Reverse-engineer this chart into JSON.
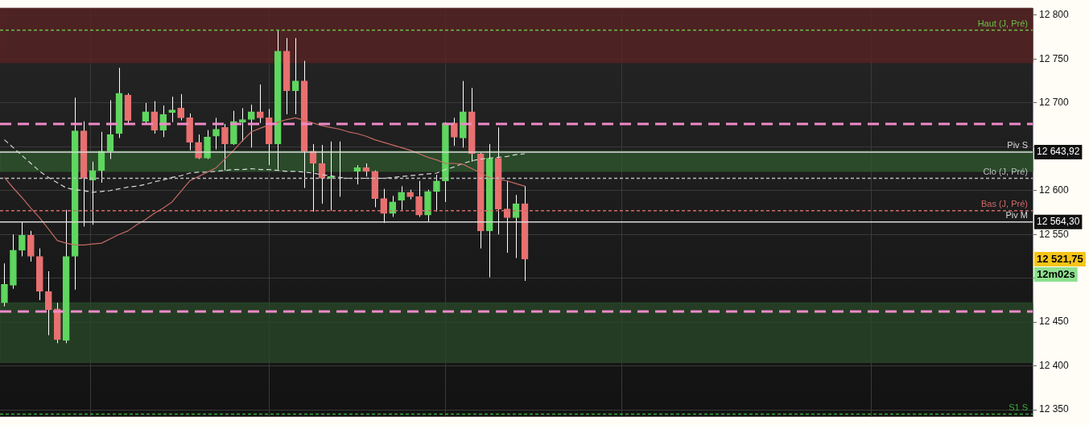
{
  "chart_data": {
    "type": "candlestick",
    "categories": [
      null,
      null,
      null,
      null,
      null,
      null,
      null,
      null,
      null,
      null,
      null,
      null,
      null,
      null,
      null,
      null,
      null,
      null,
      null,
      null,
      null,
      null,
      null,
      null,
      null,
      null,
      null,
      null,
      null,
      null,
      null,
      null,
      null,
      null,
      null,
      null,
      null,
      null,
      null,
      null,
      null,
      null,
      null,
      null,
      null,
      null,
      null,
      null,
      null,
      null,
      null,
      null,
      null,
      null,
      null,
      null,
      null,
      null,
      null,
      null
    ],
    "ohlc": [
      [
        12472,
        12517,
        12468,
        12493
      ],
      [
        12492,
        12550,
        12488,
        12532
      ],
      [
        12532,
        12564,
        12525,
        12549
      ],
      [
        12549,
        12554,
        12519,
        12525
      ],
      [
        12525,
        12534,
        12475,
        12485
      ],
      [
        12485,
        12508,
        12435,
        12464
      ],
      [
        12465,
        12472,
        12426,
        12430
      ],
      [
        12429,
        12578,
        12426,
        12525
      ],
      [
        12525,
        12706,
        12487,
        12668
      ],
      [
        12668,
        12679,
        12559,
        12614
      ],
      [
        12612,
        12633,
        12561,
        12623
      ],
      [
        12623,
        12667,
        12609,
        12645
      ],
      [
        12645,
        12703,
        12636,
        12664
      ],
      [
        12665,
        12740,
        12660,
        12711
      ],
      [
        12709,
        12711,
        12677,
        12680
      ],
      null,
      [
        12679,
        12700,
        12676,
        12690
      ],
      [
        12690,
        12702,
        12665,
        12669
      ],
      [
        12669,
        12697,
        12661,
        12687
      ],
      [
        12689,
        12707,
        12678,
        12692
      ],
      [
        12694,
        12710,
        12680,
        12683
      ],
      [
        12683,
        12688,
        12646,
        12655
      ],
      [
        12655,
        12664,
        12636,
        12637
      ],
      [
        12637,
        12669,
        12636,
        12661
      ],
      [
        12662,
        12683,
        12647,
        12670
      ],
      [
        12672,
        12676,
        12623,
        12653
      ],
      [
        12653,
        12691,
        12652,
        12679
      ],
      [
        12678,
        12694,
        12656,
        12681
      ],
      [
        12681,
        12698,
        12649,
        12690
      ],
      [
        12690,
        12721,
        12677,
        12683
      ],
      [
        12683,
        12693,
        12629,
        12653
      ],
      [
        12653,
        12783,
        12624,
        12759
      ],
      [
        12759,
        12774,
        12687,
        12714
      ],
      [
        12714,
        12774,
        12687,
        12725
      ],
      [
        12725,
        12748,
        12603,
        12645
      ],
      [
        12645,
        12653,
        12576,
        12631
      ],
      [
        12631,
        12652,
        12585,
        12614
      ],
      [
        12614,
        12656,
        12577,
        12616
      ],
      [
        12616,
        12656,
        12593,
        12616
      ],
      null,
      [
        12622,
        12629,
        12607,
        12626
      ],
      [
        12626,
        12631,
        12616,
        12622
      ],
      [
        12622,
        12623,
        12581,
        12591
      ],
      [
        12591,
        12602,
        12563,
        12574
      ],
      [
        12574,
        12594,
        12570,
        12587
      ],
      [
        12589,
        12605,
        12578,
        12598
      ],
      [
        12598,
        12601,
        12590,
        12593
      ],
      [
        12593,
        12611,
        12570,
        12572
      ],
      [
        12572,
        12601,
        12565,
        12599
      ],
      [
        12599,
        12618,
        12576,
        12611
      ],
      [
        12611,
        12678,
        12587,
        12677
      ],
      [
        12677,
        12683,
        12651,
        12661
      ],
      [
        12660,
        12725,
        12649,
        12690
      ],
      [
        12690,
        12717,
        12633,
        12642
      ],
      [
        12642,
        12643,
        12534,
        12554
      ],
      [
        12554,
        12653,
        12501,
        12637
      ],
      [
        12637,
        12672,
        12550,
        12579
      ],
      [
        12579,
        12611,
        12529,
        12569
      ],
      [
        12569,
        12595,
        12523,
        12585
      ],
      [
        12585,
        12605,
        12497,
        12521.75
      ]
    ],
    "colors": [
      "#5fd65f",
      "#5fd65f",
      "#5fd65f",
      "#e87070",
      "#e87070",
      "#e87070",
      "#e87070",
      "#5fd65f",
      "#5fd65f",
      "#e87070",
      "#5fd65f",
      "#5fd65f",
      "#5fd65f",
      "#5fd65f",
      "#e87070",
      null,
      "#5fd65f",
      "#e87070",
      "#5fd65f",
      "#5fd65f",
      "#e87070",
      "#e87070",
      "#e87070",
      "#5fd65f",
      "#5fd65f",
      "#e87070",
      "#5fd65f",
      "#5fd65f",
      "#5fd65f",
      "#e87070",
      "#e87070",
      "#5fd65f",
      "#e87070",
      "#5fd65f",
      "#e87070",
      "#e87070",
      "#e87070",
      "#5fd65f",
      "#5fd65f",
      null,
      "#5fd65f",
      "#e87070",
      "#e87070",
      "#e87070",
      "#5fd65f",
      "#5fd65f",
      "#e87070",
      "#e87070",
      "#5fd65f",
      "#5fd65f",
      "#5fd65f",
      "#e87070",
      "#5fd65f",
      "#e87070",
      "#e87070",
      "#5fd65f",
      "#e87070",
      "#e87070",
      "#5fd65f",
      "#e87070"
    ],
    "series": [
      {
        "type": "line",
        "color": "#c46a64",
        "values": [
          12615,
          12603,
          12592,
          12580,
          12569,
          12556,
          12543,
          12540,
          12538,
          12538,
          12539,
          12540,
          12545,
          12550,
          12554,
          12561,
          12567,
          12574,
          12580,
          12587,
          12599,
          12611,
          12616,
          12621,
          12626,
          12636,
          12646,
          12657,
          12667,
          12671,
          12675,
          12678,
          12681,
          12683,
          12680,
          12677,
          12674,
          12672,
          12670,
          12667,
          12665,
          12662,
          12658,
          12655,
          12652,
          12649,
          12646,
          12642,
          12638,
          12635,
          12631,
          12631,
          12630,
          12625,
          12620,
          12615,
          12613,
          12611,
          12608,
          12605
        ]
      },
      {
        "type": "line",
        "color": "#d8d8d8",
        "line_style": "dashed",
        "values": [
          12658,
          12649,
          12640,
          12631,
          12622,
          12615,
          12609,
          12603,
          12601,
          12600,
          12598,
          12599,
          12600,
          12602,
          12604,
          12605,
          12607,
          12610,
          12612,
          12615,
          12617,
          12620,
          12621,
          12621,
          12622,
          12623,
          12624,
          12624,
          12625,
          12624,
          12624,
          12623,
          12622,
          12622,
          12621,
          12620,
          12618,
          12617,
          12615,
          12614,
          12614,
          12614,
          12614,
          12614,
          12615,
          12616,
          12617,
          12618,
          12619,
          12620,
          12624,
          12627,
          12631,
          12634,
          12636,
          12637,
          12638,
          12639,
          12641,
          12642
        ]
      }
    ],
    "ylim": [
      12342,
      12808
    ],
    "yticks": [
      {
        "value": 12350,
        "label": "12 350"
      },
      {
        "value": 12400,
        "label": "12 400"
      },
      {
        "value": 12450,
        "label": "12 450"
      },
      {
        "value": 12500,
        "label": null
      },
      {
        "value": 12550,
        "label": "12 550"
      },
      {
        "value": 12600,
        "label": "12 600"
      },
      {
        "value": 12650,
        "label": null
      },
      {
        "value": 12700,
        "label": "12 700"
      },
      {
        "value": 12750,
        "label": "12 750"
      },
      {
        "value": 12800,
        "label": "12 800"
      }
    ],
    "grid": true,
    "tick_labels": "y",
    "bands": [
      {
        "axis": "y",
        "from": 12746,
        "to": 12808,
        "color": "#5a2222"
      },
      {
        "axis": "y",
        "from": 12622,
        "to": 12645,
        "color": "#2f5a2f"
      },
      {
        "axis": "y",
        "from": 12404,
        "to": 12472,
        "color": "#2a4a2a"
      }
    ],
    "ref_lines": [
      {
        "axis": "y",
        "value": 12676,
        "color": "#f08ac8",
        "line_style": "dashed"
      },
      {
        "axis": "y",
        "value": 12462,
        "color": "#f08ac8",
        "line_style": "dashed"
      },
      {
        "axis": "y",
        "value": 12783,
        "label": "Haut (J, Pré)",
        "color": "#6cc04a",
        "line_style": "dashed"
      },
      {
        "axis": "y",
        "value": 12614,
        "label": "Clo (J, Pré)",
        "color": "#bdbdbd",
        "line_style": "dashed"
      },
      {
        "axis": "y",
        "value": 12577,
        "label": "Bas (J, Pré)",
        "color": "#d46a6a",
        "line_style": "dashed"
      },
      {
        "axis": "y",
        "value": 12643.92,
        "label": "Piv S",
        "color": "#d8d8d8",
        "line_style": "solid"
      },
      {
        "axis": "y",
        "value": 12564.3,
        "label": "Piv M",
        "color": "#d8d8d8",
        "line_style": "solid"
      },
      {
        "axis": "y",
        "value": 12345,
        "label": "S1 S",
        "color": "#3aa83a",
        "line_style": "dashed"
      }
    ],
    "annotations": [
      "12 643,92",
      "12 564,30",
      "12 521,75",
      "12m02s"
    ]
  }
}
